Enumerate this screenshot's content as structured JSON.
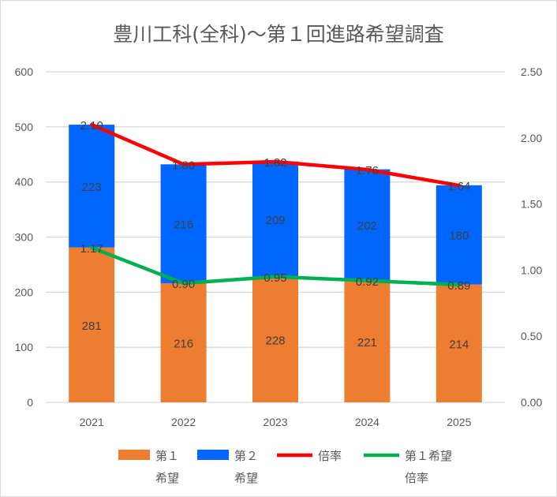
{
  "chart_data": {
    "type": "bar",
    "title": "豊川工科(全科)～第１回進路希望調査",
    "categories": [
      "2021",
      "2022",
      "2023",
      "2024",
      "2025"
    ],
    "series": [
      {
        "name": "第１希望",
        "legend_lines": [
          "第１",
          "希望"
        ],
        "kind": "stacked-bar",
        "axis": "left",
        "color": "#ed7d31",
        "values": [
          281,
          216,
          228,
          221,
          214
        ]
      },
      {
        "name": "第２希望",
        "legend_lines": [
          "第２",
          "希望"
        ],
        "kind": "stacked-bar",
        "axis": "left",
        "color": "#0066ff",
        "values": [
          223,
          216,
          209,
          202,
          180
        ]
      },
      {
        "name": "倍率",
        "legend_lines": [
          "倍率"
        ],
        "kind": "line",
        "axis": "right",
        "color": "#ff0000",
        "label_color": "#404040",
        "values": [
          2.1,
          1.8,
          1.82,
          1.76,
          1.64
        ],
        "labels": [
          "2.10",
          "1.80",
          "1.82",
          "1.76",
          "1.64"
        ]
      },
      {
        "name": "第１希望倍率",
        "legend_lines": [
          "第１希望",
          "倍率"
        ],
        "kind": "line",
        "axis": "right",
        "color": "#00b050",
        "label_color": "#ffff00",
        "values": [
          1.17,
          0.9,
          0.95,
          0.92,
          0.89
        ],
        "labels": [
          "1.17",
          "0.90",
          "0.95",
          "0.92",
          "0.89"
        ]
      }
    ],
    "ylim": [
      0,
      600
    ],
    "yticks": [
      "0",
      "100",
      "200",
      "300",
      "400",
      "500",
      "600"
    ],
    "y2lim": [
      0,
      2.5
    ],
    "y2ticks": [
      "0.00",
      "0.50",
      "1.00",
      "1.50",
      "2.00",
      "2.50"
    ],
    "grid": true,
    "legend": "bottom"
  }
}
